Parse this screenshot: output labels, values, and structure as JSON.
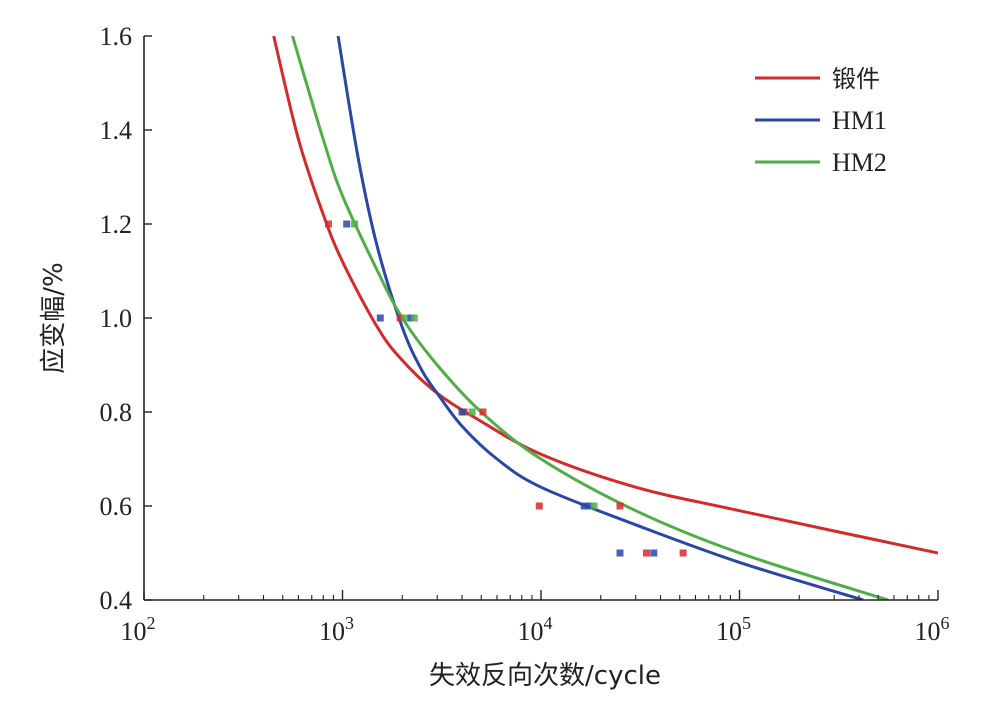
{
  "chart_data": {
    "type": "line",
    "xlabel": "失效反向次数/cycle",
    "ylabel": "应变幅/%",
    "x_scale": "log",
    "xlim": [
      100,
      1000000
    ],
    "ylim": [
      0.4,
      1.6
    ],
    "x_ticks": [
      {
        "value": 100,
        "base": "10",
        "exp": "2"
      },
      {
        "value": 1000,
        "base": "10",
        "exp": "3"
      },
      {
        "value": 10000,
        "base": "10",
        "exp": "4"
      },
      {
        "value": 100000,
        "base": "10",
        "exp": "5"
      },
      {
        "value": 1000000,
        "base": "10",
        "exp": "6"
      }
    ],
    "y_ticks": [
      "0.4",
      "0.6",
      "0.8",
      "1.0",
      "1.2",
      "1.4",
      "1.6"
    ],
    "legend_position": "top-right",
    "grid": false,
    "series": [
      {
        "name": "锻件",
        "color": "#d62a2a",
        "curve": {
          "x": [
            450,
            600,
            800,
            1000,
            1500,
            2000,
            3000,
            5000,
            10000,
            30000,
            100000,
            1000000
          ],
          "y": [
            1.6,
            1.38,
            1.22,
            1.12,
            0.98,
            0.91,
            0.84,
            0.78,
            0.71,
            0.64,
            0.59,
            0.5
          ]
        },
        "points": {
          "x": [
            850,
            1950,
            4100,
            5100,
            9800,
            25000,
            34000,
            52000
          ],
          "y": [
            1.2,
            1.0,
            0.8,
            0.8,
            0.6,
            0.6,
            0.5,
            0.5
          ]
        }
      },
      {
        "name": "HM1",
        "color": "#2a47a8",
        "curve": {
          "x": [
            950,
            1200,
            1500,
            2000,
            2500,
            3000,
            4000,
            6000,
            10000,
            30000,
            100000,
            420000
          ],
          "y": [
            1.6,
            1.34,
            1.15,
            0.98,
            0.89,
            0.84,
            0.77,
            0.7,
            0.64,
            0.56,
            0.48,
            0.4
          ]
        },
        "points": {
          "x": [
            1050,
            1550,
            2200,
            4000,
            16500,
            17500,
            25000,
            37000
          ],
          "y": [
            1.2,
            1.0,
            1.0,
            0.8,
            0.6,
            0.6,
            0.5,
            0.5
          ]
        }
      },
      {
        "name": "HM2",
        "color": "#4fae46",
        "curve": {
          "x": [
            560,
            800,
            1000,
            1500,
            2000,
            3000,
            5000,
            10000,
            30000,
            100000,
            560000
          ],
          "y": [
            1.6,
            1.38,
            1.26,
            1.1,
            1.0,
            0.9,
            0.8,
            0.7,
            0.59,
            0.5,
            0.4
          ]
        },
        "points": {
          "x": [
            1150,
            2050,
            2300,
            4500,
            18500
          ],
          "y": [
            1.2,
            1.0,
            1.0,
            0.8,
            0.6
          ]
        }
      }
    ]
  }
}
